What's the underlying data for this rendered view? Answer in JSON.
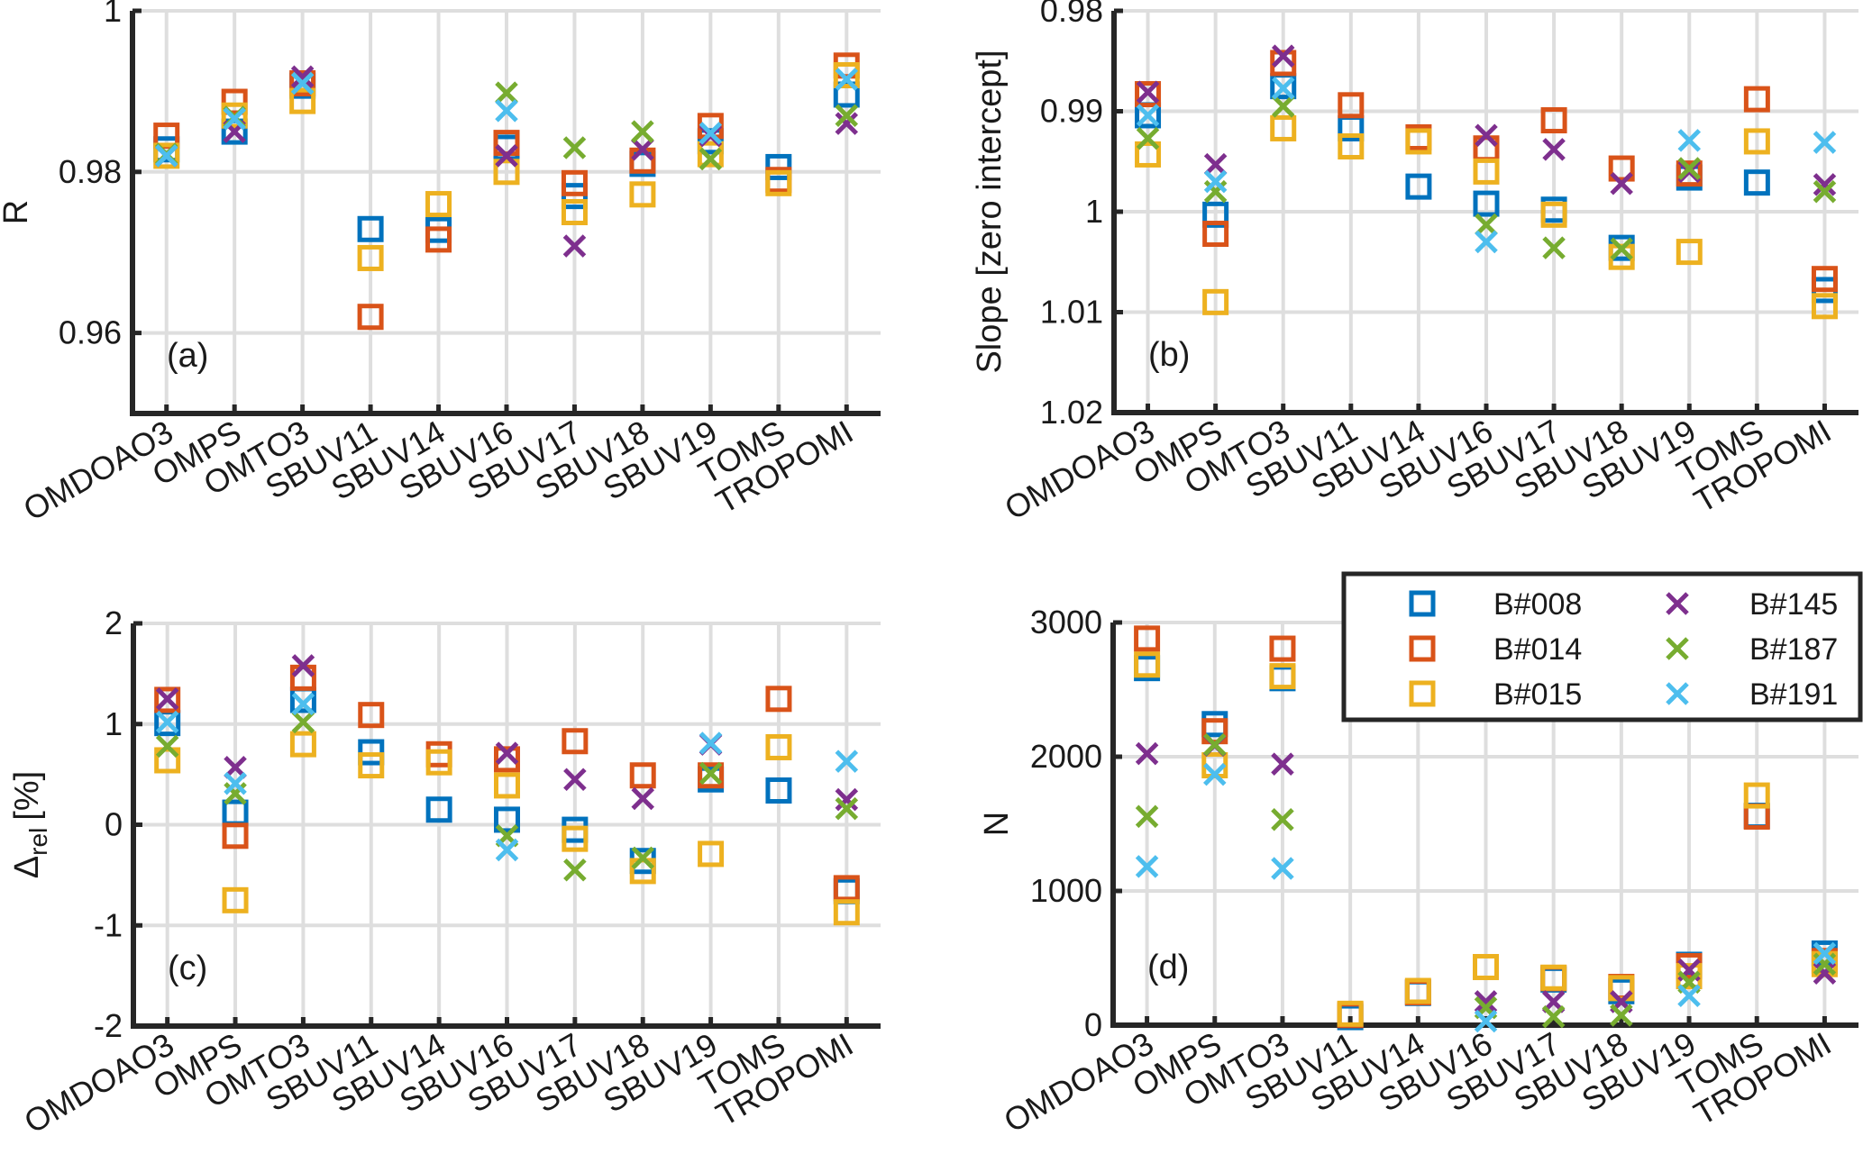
{
  "chart_data": {
    "type": "scatter",
    "categories": [
      "OMDOAO3",
      "OMPS",
      "OMTO3",
      "SBUV11",
      "SBUV14",
      "SBUV16",
      "SBUV17",
      "SBUV18",
      "SBUV19",
      "TOMS",
      "TROPOMI"
    ],
    "legend": {
      "placement": "panel-d top-right",
      "entries": [
        {
          "name": "B#008",
          "marker": "square",
          "color": "#0072BD"
        },
        {
          "name": "B#014",
          "marker": "square",
          "color": "#D95319"
        },
        {
          "name": "B#015",
          "marker": "square",
          "color": "#EDB120"
        },
        {
          "name": "B#145",
          "marker": "x",
          "color": "#7E2F8E"
        },
        {
          "name": "B#187",
          "marker": "x",
          "color": "#77AC30"
        },
        {
          "name": "B#191",
          "marker": "x",
          "color": "#4DBEEE"
        }
      ]
    },
    "panels": [
      {
        "tag": "(a)",
        "ylabel": "R",
        "ylim": [
          0.95,
          1.0
        ],
        "yreverse": false,
        "yticks": [
          0.96,
          0.98,
          1
        ],
        "ytick_labels": [
          "0.96",
          "0.98",
          "1"
        ],
        "grid": true,
        "series": [
          {
            "name": "B#008",
            "values": [
              0.9828,
              0.985,
              0.9907,
              0.9729,
              0.9728,
              0.983,
              0.977,
              0.981,
              0.9838,
              0.9806,
              0.9896
            ]
          },
          {
            "name": "B#014",
            "values": [
              0.9845,
              0.9887,
              0.991,
              0.962,
              0.9716,
              0.9836,
              0.9786,
              0.9814,
              0.9857,
              0.979,
              0.9932
            ]
          },
          {
            "name": "B#015",
            "values": [
              0.982,
              0.987,
              0.9888,
              0.9693,
              0.976,
              0.98,
              0.975,
              0.9772,
              0.9822,
              0.9786,
              0.992
            ]
          },
          {
            "name": "B#145",
            "values": [
              0.982,
              0.985,
              0.9918,
              null,
              null,
              0.982,
              0.9708,
              0.9828,
              0.9845,
              null,
              0.986
            ]
          },
          {
            "name": "B#187",
            "values": [
              0.9822,
              0.9868,
              0.991,
              null,
              null,
              0.9898,
              0.983,
              0.985,
              0.9816,
              null,
              0.987
            ]
          },
          {
            "name": "B#191",
            "values": [
              0.982,
              0.9866,
              0.991,
              null,
              null,
              0.9876,
              null,
              null,
              0.9848,
              null,
              0.9915
            ]
          }
        ]
      },
      {
        "tag": "(b)",
        "ylabel": "Slope [zero intercept]",
        "ylim": [
          0.98,
          1.02
        ],
        "yreverse": true,
        "yticks": [
          0.98,
          0.99,
          1,
          1.01,
          1.02
        ],
        "ytick_labels": [
          "0.98",
          "0.99",
          "1",
          "1.01",
          "1.02"
        ],
        "grid": true,
        "series": [
          {
            "name": "B#008",
            "values": [
              0.9904,
              1.0003,
              0.9875,
              0.9917,
              0.9975,
              0.9992,
              0.9998,
              1.0036,
              0.9966,
              0.9971,
              1.0078
            ]
          },
          {
            "name": "B#014",
            "values": [
              0.9883,
              1.0022,
              0.9852,
              0.9894,
              0.9926,
              0.9937,
              0.9909,
              0.9957,
              0.9962,
              0.9888,
              1.0067
            ]
          },
          {
            "name": "B#015",
            "values": [
              0.9943,
              1.009,
              0.9917,
              0.9935,
              0.993,
              0.996,
              1.0003,
              1.0045,
              1.004,
              0.993,
              1.0094
            ]
          },
          {
            "name": "B#145",
            "values": [
              0.9881,
              0.9953,
              0.9845,
              null,
              null,
              0.9924,
              0.9938,
              0.9972,
              0.996,
              null,
              0.9973
            ]
          },
          {
            "name": "B#187",
            "values": [
              0.9927,
              0.998,
              0.9895,
              null,
              null,
              1.0013,
              1.0036,
              1.0037,
              0.9957,
              null,
              0.998
            ]
          },
          {
            "name": "B#191",
            "values": [
              0.9904,
              0.997,
              0.9877,
              null,
              null,
              1.003,
              null,
              null,
              0.9929,
              null,
              0.9931
            ]
          }
        ]
      },
      {
        "tag": "(c)",
        "ylabel": "Δrel [%]",
        "ylabel_main": "Δ",
        "ylabel_sub": "rel",
        "ylabel_unit": "[%]",
        "ylim": [
          -2,
          2
        ],
        "yreverse": false,
        "yticks": [
          -2,
          -1,
          0,
          1,
          2
        ],
        "ytick_labels": [
          "-2",
          "-1",
          "0",
          "1",
          "2"
        ],
        "grid": true,
        "series": [
          {
            "name": "B#008",
            "values": [
              1.01,
              0.12,
              1.24,
              0.72,
              0.15,
              0.05,
              -0.05,
              -0.36,
              0.45,
              0.34,
              -0.66
            ]
          },
          {
            "name": "B#014",
            "values": [
              1.24,
              -0.11,
              1.46,
              1.09,
              0.7,
              0.65,
              0.83,
              0.49,
              0.49,
              1.25,
              -0.63
            ]
          },
          {
            "name": "B#015",
            "values": [
              0.64,
              -0.75,
              0.8,
              0.59,
              0.62,
              0.39,
              -0.14,
              -0.46,
              -0.29,
              0.77,
              -0.87
            ]
          },
          {
            "name": "B#145",
            "values": [
              1.25,
              0.57,
              1.58,
              null,
              null,
              0.71,
              0.45,
              0.26,
              0.8,
              null,
              0.25
            ]
          },
          {
            "name": "B#187",
            "values": [
              0.78,
              0.31,
              1.02,
              null,
              null,
              -0.11,
              -0.45,
              -0.33,
              0.51,
              null,
              0.16
            ]
          },
          {
            "name": "B#191",
            "values": [
              1.02,
              0.41,
              1.2,
              null,
              null,
              -0.25,
              null,
              null,
              0.81,
              null,
              0.63
            ]
          }
        ]
      },
      {
        "tag": "(d)",
        "ylabel": "N",
        "ylim": [
          0,
          3000
        ],
        "yreverse": false,
        "yticks": [
          0,
          1000,
          2000,
          3000
        ],
        "ytick_labels": [
          "0",
          "1000",
          "2000",
          "3000"
        ],
        "grid": true,
        "series": [
          {
            "name": "B#008",
            "values": [
              2660,
              2243,
              2585,
              60,
              240,
              null,
              340,
              253,
              450,
              1560,
              534
            ]
          },
          {
            "name": "B#014",
            "values": [
              2880,
              2190,
              2805,
              75,
              245,
              null,
              350,
              285,
              440,
              1554,
              478
            ]
          },
          {
            "name": "B#015",
            "values": [
              2686,
              1936,
              2600,
              85,
              255,
              433,
              354,
              276,
              365,
              1711,
              455
            ]
          },
          {
            "name": "B#145",
            "values": [
              2023,
              2085,
              1945,
              null,
              null,
              175,
              175,
              175,
              410,
              null,
              388
            ]
          },
          {
            "name": "B#187",
            "values": [
              1555,
              2090,
              1532,
              null,
              null,
              130,
              63,
              74,
              320,
              null,
              455
            ]
          },
          {
            "name": "B#191",
            "values": [
              1182,
              1868,
              1168,
              null,
              null,
              30,
              null,
              null,
              220,
              null,
              534
            ]
          }
        ]
      }
    ]
  }
}
